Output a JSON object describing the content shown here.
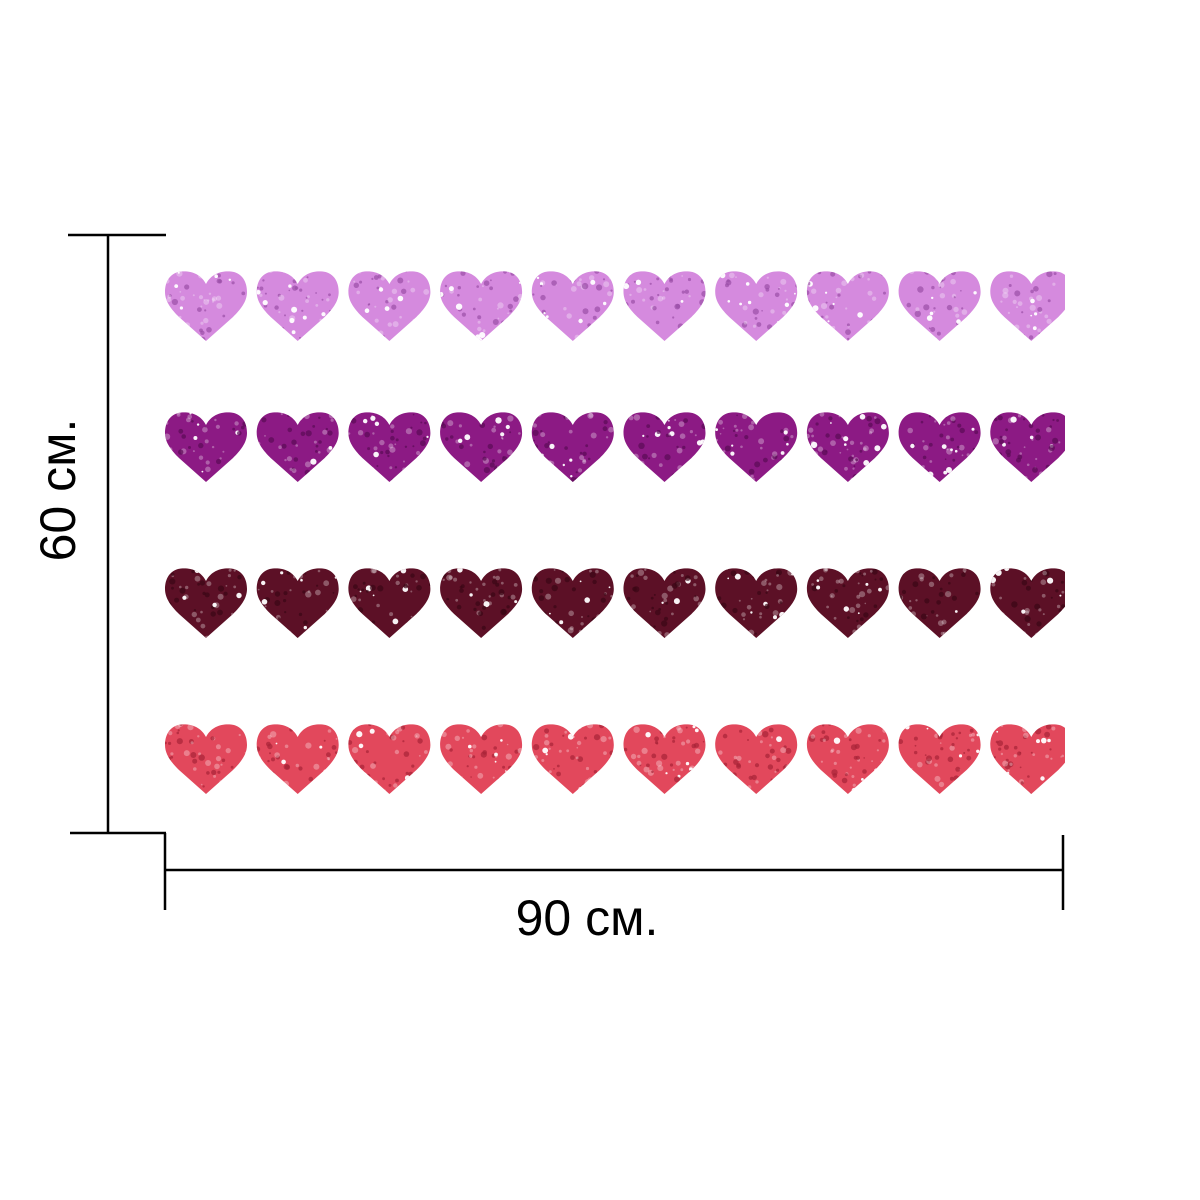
{
  "dimensions": {
    "width_label": "90 см.",
    "height_label": "60 см."
  },
  "hearts": {
    "columns": 10,
    "rows": [
      {
        "name": "lilac-glitter",
        "color": "#d58ade",
        "dark": "#9a4fa6"
      },
      {
        "name": "purple-glitter",
        "color": "#8c1a84",
        "dark": "#5a0c55"
      },
      {
        "name": "burgundy-glitter",
        "color": "#5c1026",
        "dark": "#3a0716"
      },
      {
        "name": "coral-red-glitter",
        "color": "#e2485c",
        "dark": "#a82438"
      }
    ]
  },
  "colors": {
    "line": "#000000",
    "background": "#ffffff"
  }
}
